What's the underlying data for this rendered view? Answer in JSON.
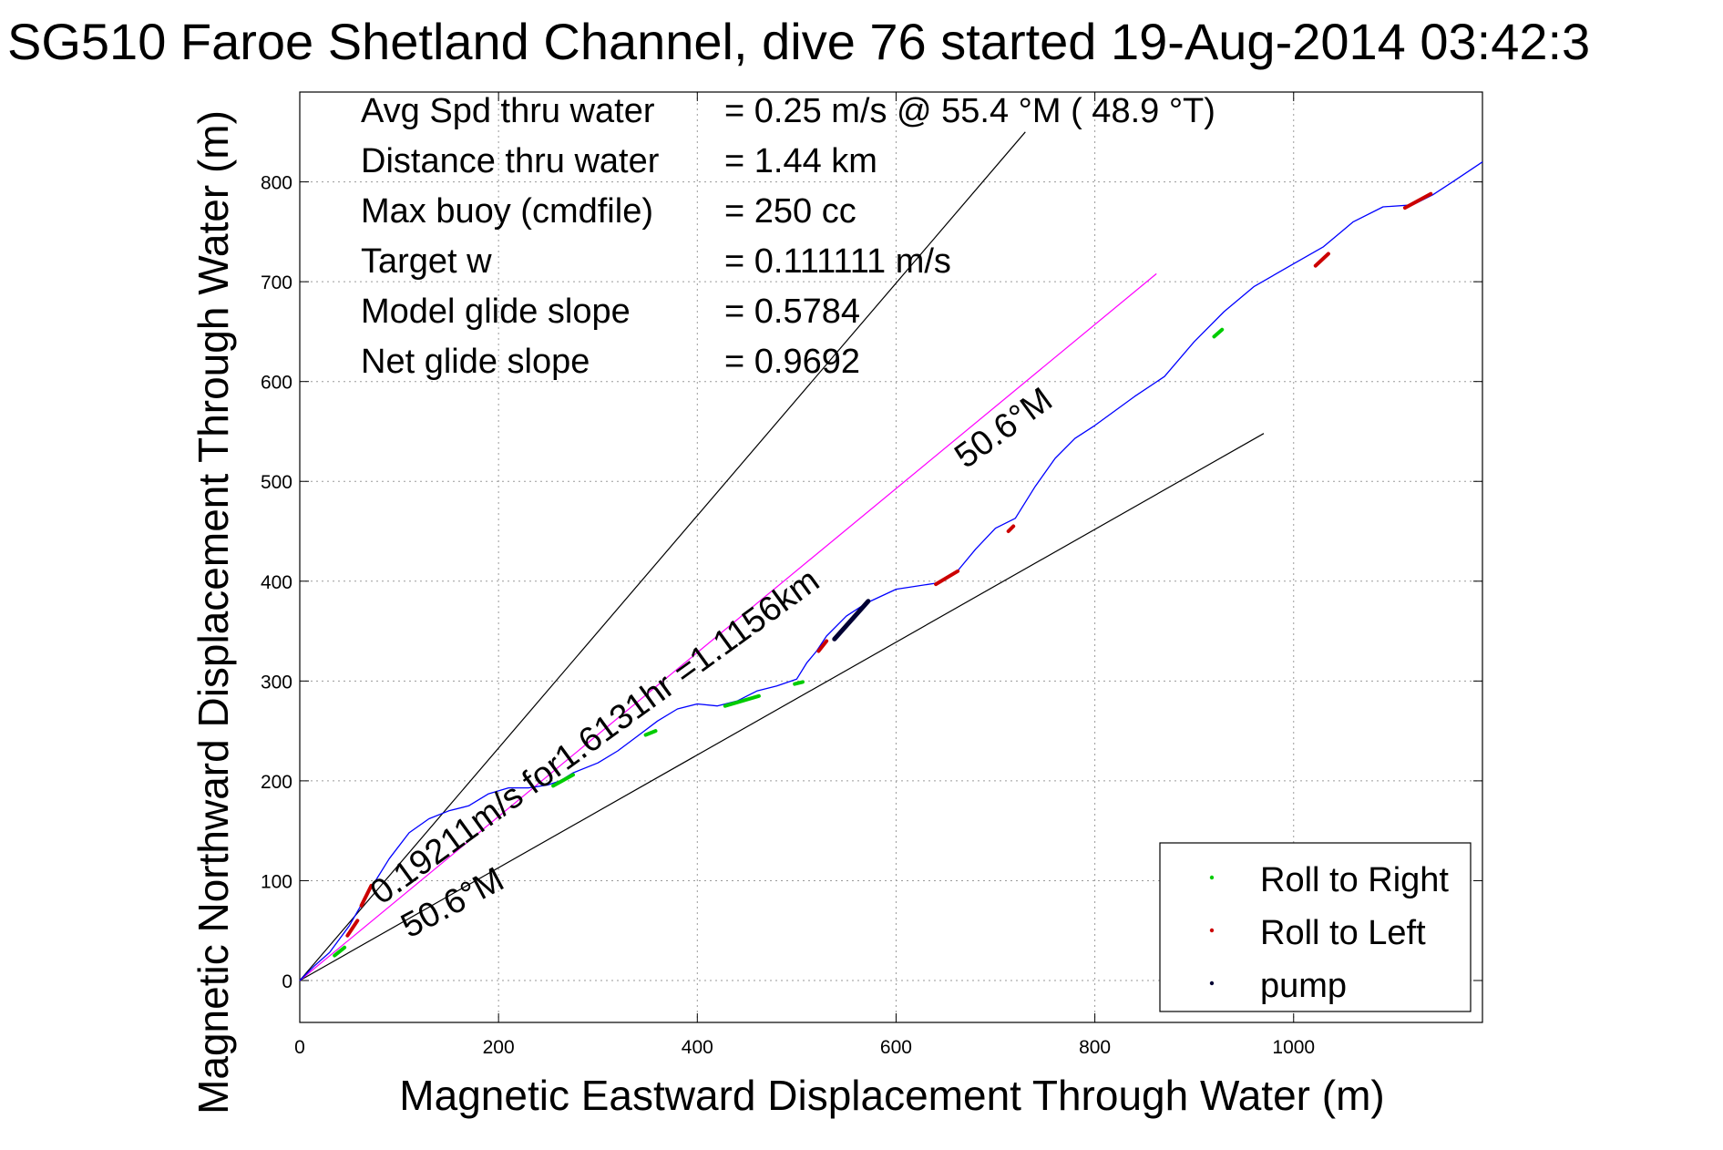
{
  "chart_data": {
    "type": "line",
    "title": "SG510 Faroe Shetland Channel, dive 76 started 19-Aug-2014 03:42:3",
    "xlabel": "Magnetic Eastward Displacement Through Water (m)",
    "ylabel": "Magnetic Northward Displacement Through Water (m)",
    "xlim": [
      0,
      1190
    ],
    "ylim": [
      -42,
      890
    ],
    "xticks": [
      0,
      200,
      400,
      600,
      800,
      1000
    ],
    "yticks": [
      0,
      100,
      200,
      300,
      400,
      500,
      600,
      700,
      800
    ],
    "grid": true,
    "legend_position": "bottom-right",
    "info_rows": [
      {
        "label": "Avg Spd thru water",
        "value": "=  0.25 m/s @  55.4 °M ( 48.9 °T)"
      },
      {
        "label": "Distance thru water",
        "value": "=  1.44 km"
      },
      {
        "label": "Max buoy (cmdfile)",
        "value": "= 250 cc"
      },
      {
        "label": "Target w",
        "value": "= 0.111111 m/s"
      },
      {
        "label": "Model glide slope",
        "value": "= 0.5784"
      },
      {
        "label": "Net glide slope",
        "value": "= 0.9692"
      }
    ],
    "annotations": {
      "current_label": "0.19211m/s for1.6131hr =1.1156km",
      "heading_upper": "50.6°M",
      "heading_lower": "50.6°M"
    },
    "legend": [
      {
        "label": "Roll to Right",
        "color": "#00cc00"
      },
      {
        "label": "Roll to Left",
        "color": "#cc0000"
      },
      {
        "label": "pump",
        "color": "#000033"
      }
    ],
    "colors": {
      "track": "#0000ff",
      "current_line": "#ff00ff",
      "reference_lines": "#000000",
      "roll_right": "#00cc00",
      "roll_left": "#cc0000",
      "pump": "#000033"
    },
    "reference_lines": [
      {
        "name": "upper-bound",
        "x": [
          0,
          730
        ],
        "y": [
          0,
          850
        ]
      },
      {
        "name": "lower-bound",
        "x": [
          0,
          970
        ],
        "y": [
          0,
          548
        ]
      }
    ],
    "current_line": {
      "x": [
        0,
        862
      ],
      "y": [
        0,
        708
      ]
    },
    "track": {
      "x": [
        0,
        15,
        30,
        50,
        70,
        90,
        110,
        130,
        150,
        170,
        190,
        210,
        230,
        250,
        262,
        275,
        300,
        320,
        340,
        360,
        380,
        400,
        420,
        440,
        460,
        480,
        500,
        510,
        520,
        530,
        550,
        570,
        600,
        640,
        660,
        680,
        700,
        720,
        740,
        760,
        780,
        800,
        840,
        870,
        900,
        930,
        960,
        1000,
        1030,
        1060,
        1090,
        1120,
        1140,
        1160,
        1190
      ],
      "y": [
        0,
        15,
        28,
        55,
        90,
        122,
        148,
        162,
        170,
        175,
        187,
        193,
        193,
        196,
        200,
        208,
        218,
        230,
        245,
        260,
        272,
        277,
        275,
        280,
        290,
        295,
        302,
        318,
        330,
        345,
        365,
        378,
        392,
        398,
        408,
        432,
        453,
        463,
        495,
        523,
        543,
        556,
        585,
        605,
        640,
        670,
        695,
        718,
        735,
        760,
        775,
        777,
        787,
        800,
        820
      ]
    },
    "roll_right_segments": [
      {
        "x": [
          35,
          45
        ],
        "y": [
          25,
          33
        ]
      },
      {
        "x": [
          255,
          275
        ],
        "y": [
          195,
          206
        ]
      },
      {
        "x": [
          348,
          358
        ],
        "y": [
          246,
          250
        ]
      },
      {
        "x": [
          428,
          462
        ],
        "y": [
          275,
          285
        ]
      },
      {
        "x": [
          498,
          506
        ],
        "y": [
          297,
          299
        ]
      },
      {
        "x": [
          920,
          928
        ],
        "y": [
          645,
          652
        ]
      }
    ],
    "roll_left_segments": [
      {
        "x": [
          48,
          58
        ],
        "y": [
          45,
          60
        ]
      },
      {
        "x": [
          62,
          72
        ],
        "y": [
          75,
          95
        ]
      },
      {
        "x": [
          522,
          530
        ],
        "y": [
          330,
          340
        ]
      },
      {
        "x": [
          640,
          662
        ],
        "y": [
          397,
          410
        ]
      },
      {
        "x": [
          713,
          718
        ],
        "y": [
          450,
          455
        ]
      },
      {
        "x": [
          1022,
          1035
        ],
        "y": [
          716,
          728
        ]
      },
      {
        "x": [
          1112,
          1138
        ],
        "y": [
          774,
          788
        ]
      }
    ],
    "pump_segments": [
      {
        "x": [
          538,
          572
        ],
        "y": [
          342,
          380
        ]
      }
    ]
  }
}
